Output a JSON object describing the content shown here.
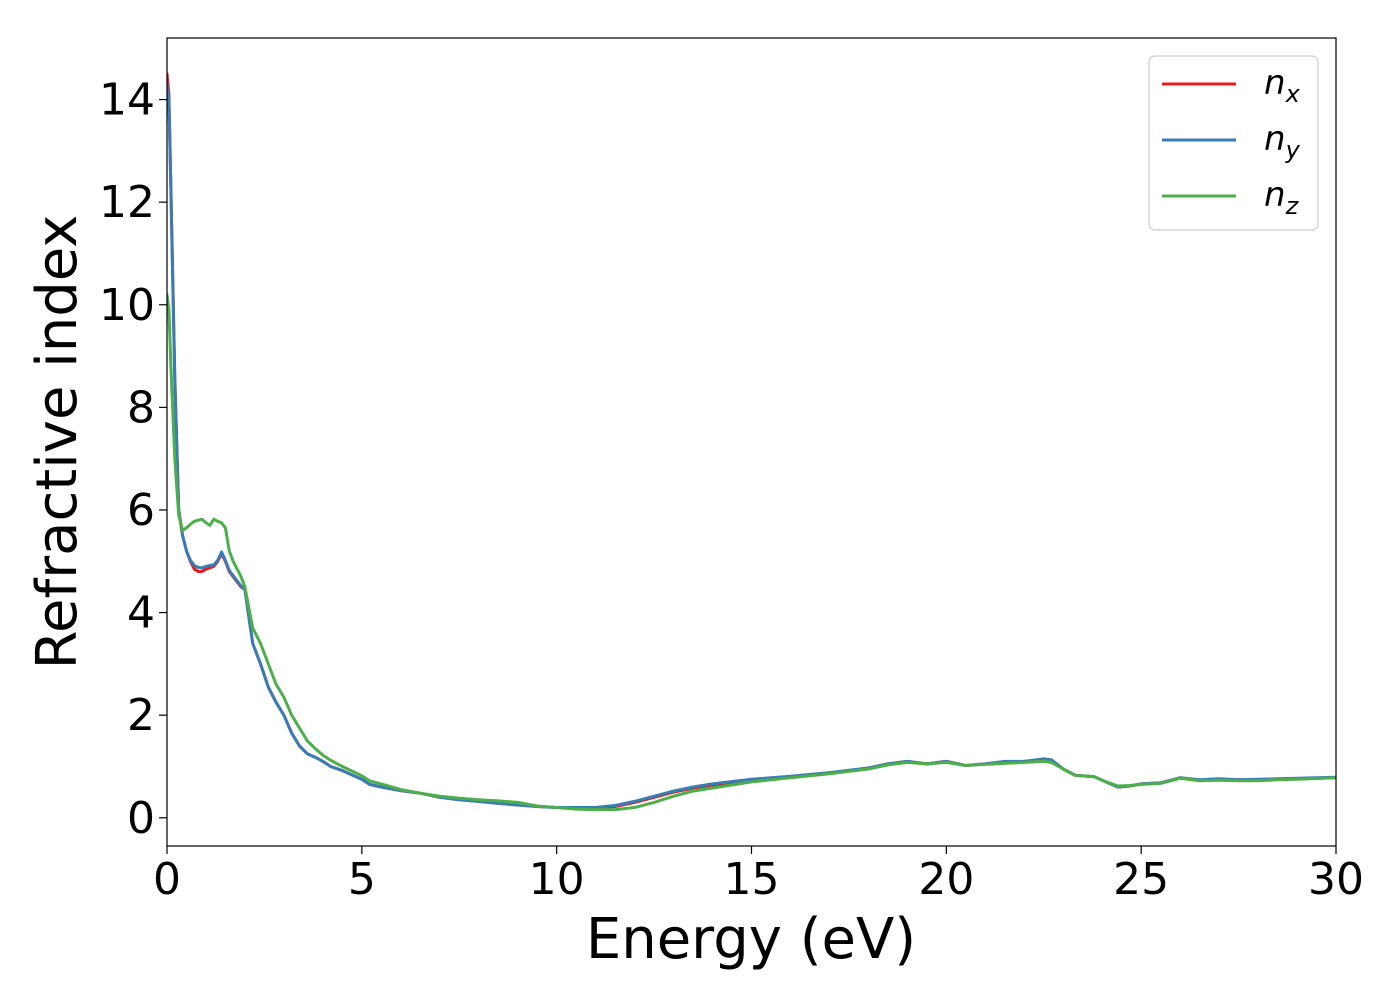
{
  "chart_data": {
    "type": "line",
    "title": "",
    "xlabel": "Energy (eV)",
    "ylabel": "Refractive index",
    "xlim": [
      0,
      30
    ],
    "ylim": [
      -0.55,
      15.2
    ],
    "xticks": [
      0,
      5,
      10,
      15,
      20,
      25,
      30
    ],
    "yticks": [
      0,
      2,
      4,
      6,
      8,
      10,
      12,
      14
    ],
    "grid": false,
    "legend": "top-right",
    "series": [
      {
        "name": "n",
        "subscript": "x",
        "color": "#e41a1c",
        "x": [
          0,
          0.05,
          0.1,
          0.2,
          0.3,
          0.4,
          0.5,
          0.6,
          0.7,
          0.8,
          0.9,
          1.0,
          1.1,
          1.2,
          1.3,
          1.4,
          1.5,
          1.6,
          1.7,
          1.8,
          1.9,
          2.0,
          2.2,
          2.4,
          2.6,
          2.8,
          3.0,
          3.2,
          3.4,
          3.6,
          3.8,
          4.0,
          4.2,
          4.5,
          5.0,
          5.2,
          5.5,
          6.0,
          6.5,
          7.0,
          7.5,
          8.0,
          8.5,
          9.0,
          9.5,
          10.0,
          10.5,
          11.0,
          11.5,
          12.0,
          12.5,
          13.0,
          13.5,
          14.0,
          15.0,
          16.0,
          17.0,
          18.0,
          18.5,
          19.0,
          19.5,
          20.0,
          20.5,
          21.0,
          21.5,
          22.0,
          22.5,
          22.7,
          23.0,
          23.3,
          23.8,
          24.0,
          24.4,
          24.7,
          25.0,
          25.5,
          26.0,
          26.5,
          27.0,
          27.5,
          28.0,
          28.5,
          29.0,
          30.0
        ],
        "y": [
          14.5,
          14.1,
          12.3,
          8.6,
          6.0,
          5.5,
          5.2,
          5.0,
          4.85,
          4.8,
          4.8,
          4.85,
          4.87,
          4.9,
          5.0,
          5.15,
          5.0,
          4.8,
          4.7,
          4.6,
          4.5,
          4.45,
          3.4,
          3.0,
          2.55,
          2.25,
          2.0,
          1.65,
          1.4,
          1.25,
          1.18,
          1.1,
          1.0,
          0.92,
          0.75,
          0.65,
          0.6,
          0.53,
          0.48,
          0.4,
          0.35,
          0.32,
          0.28,
          0.25,
          0.22,
          0.2,
          0.19,
          0.19,
          0.22,
          0.3,
          0.4,
          0.5,
          0.58,
          0.64,
          0.73,
          0.8,
          0.87,
          0.97,
          1.05,
          1.1,
          1.05,
          1.1,
          1.02,
          1.05,
          1.08,
          1.1,
          1.13,
          1.12,
          0.95,
          0.83,
          0.8,
          0.73,
          0.6,
          0.62,
          0.66,
          0.68,
          0.78,
          0.73,
          0.75,
          0.74,
          0.74,
          0.75,
          0.76,
          0.78
        ]
      },
      {
        "name": "n",
        "subscript": "y",
        "color": "#377eb8",
        "x": [
          0,
          0.05,
          0.1,
          0.2,
          0.3,
          0.4,
          0.5,
          0.6,
          0.7,
          0.8,
          0.9,
          1.0,
          1.1,
          1.2,
          1.3,
          1.4,
          1.5,
          1.6,
          1.7,
          1.8,
          1.9,
          2.0,
          2.2,
          2.4,
          2.6,
          2.8,
          3.0,
          3.2,
          3.4,
          3.6,
          3.8,
          4.0,
          4.2,
          4.5,
          5.0,
          5.2,
          5.5,
          6.0,
          6.5,
          7.0,
          7.5,
          8.0,
          8.5,
          9.0,
          9.5,
          10.0,
          10.5,
          11.0,
          11.5,
          12.0,
          12.5,
          13.0,
          13.5,
          14.0,
          15.0,
          16.0,
          17.0,
          18.0,
          18.5,
          19.0,
          19.5,
          20.0,
          20.5,
          21.0,
          21.5,
          22.0,
          22.5,
          22.7,
          23.0,
          23.3,
          23.8,
          24.0,
          24.4,
          24.7,
          25.0,
          25.5,
          26.0,
          26.5,
          27.0,
          27.5,
          28.0,
          28.5,
          29.0,
          30.0
        ],
        "y": [
          14.3,
          14.0,
          12.2,
          8.5,
          6.0,
          5.5,
          5.2,
          5.02,
          4.92,
          4.88,
          4.87,
          4.9,
          4.92,
          4.93,
          5.02,
          5.18,
          5.02,
          4.82,
          4.72,
          4.62,
          4.52,
          4.45,
          3.4,
          3.0,
          2.55,
          2.25,
          2.0,
          1.65,
          1.4,
          1.25,
          1.18,
          1.1,
          1.0,
          0.92,
          0.75,
          0.65,
          0.6,
          0.53,
          0.48,
          0.4,
          0.35,
          0.32,
          0.28,
          0.25,
          0.22,
          0.2,
          0.2,
          0.2,
          0.24,
          0.32,
          0.42,
          0.52,
          0.6,
          0.66,
          0.75,
          0.81,
          0.88,
          0.97,
          1.05,
          1.1,
          1.05,
          1.1,
          1.02,
          1.05,
          1.1,
          1.1,
          1.15,
          1.13,
          0.95,
          0.83,
          0.8,
          0.73,
          0.6,
          0.62,
          0.66,
          0.68,
          0.78,
          0.74,
          0.76,
          0.74,
          0.75,
          0.76,
          0.77,
          0.79
        ]
      },
      {
        "name": "n",
        "subscript": "z",
        "color": "#4daf4a",
        "x": [
          0,
          0.05,
          0.1,
          0.2,
          0.3,
          0.4,
          0.5,
          0.6,
          0.7,
          0.8,
          0.9,
          1.0,
          1.1,
          1.2,
          1.3,
          1.4,
          1.5,
          1.6,
          1.7,
          1.8,
          1.9,
          2.0,
          2.2,
          2.4,
          2.6,
          2.8,
          3.0,
          3.2,
          3.4,
          3.6,
          3.8,
          4.0,
          4.2,
          4.5,
          5.0,
          5.2,
          5.5,
          6.0,
          6.5,
          7.0,
          7.5,
          8.0,
          8.5,
          9.0,
          9.5,
          10.0,
          10.5,
          11.0,
          11.5,
          12.0,
          12.5,
          13.0,
          13.5,
          14.0,
          15.0,
          16.0,
          17.0,
          18.0,
          18.5,
          19.0,
          19.5,
          20.0,
          20.5,
          21.0,
          21.5,
          22.0,
          22.5,
          22.7,
          23.0,
          23.3,
          23.8,
          24.0,
          24.4,
          24.7,
          25.0,
          25.5,
          26.0,
          26.5,
          27.0,
          27.5,
          28.0,
          28.5,
          29.0,
          30.0
        ],
        "y": [
          10.2,
          9.9,
          8.8,
          7.0,
          5.9,
          5.6,
          5.65,
          5.72,
          5.78,
          5.8,
          5.82,
          5.75,
          5.7,
          5.82,
          5.78,
          5.75,
          5.65,
          5.2,
          5.0,
          4.85,
          4.7,
          4.5,
          3.7,
          3.4,
          3.0,
          2.6,
          2.35,
          2.0,
          1.75,
          1.5,
          1.35,
          1.22,
          1.12,
          1.0,
          0.82,
          0.72,
          0.66,
          0.55,
          0.48,
          0.42,
          0.38,
          0.35,
          0.33,
          0.3,
          0.23,
          0.2,
          0.17,
          0.16,
          0.16,
          0.2,
          0.3,
          0.42,
          0.52,
          0.58,
          0.7,
          0.78,
          0.86,
          0.95,
          1.03,
          1.08,
          1.05,
          1.08,
          1.02,
          1.04,
          1.06,
          1.08,
          1.1,
          1.08,
          0.95,
          0.83,
          0.8,
          0.73,
          0.62,
          0.63,
          0.65,
          0.67,
          0.77,
          0.72,
          0.73,
          0.72,
          0.72,
          0.74,
          0.75,
          0.78
        ]
      }
    ]
  }
}
